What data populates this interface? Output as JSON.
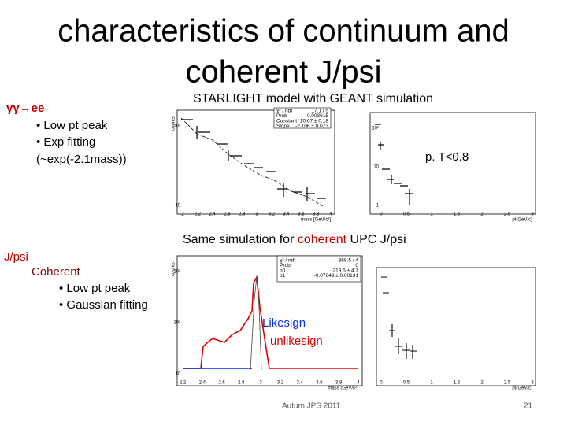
{
  "title_lines": [
    "characteristics of continuum and",
    "coherent J/psi"
  ],
  "top": {
    "heading": "γγ→ee",
    "bullets": [
      "• Low pt peak",
      "• Exp fitting",
      "(~exp(-2.1mass))"
    ],
    "caption": "STARLIGHT model with GEANT simulation",
    "pt_cut": "p. T<0.8",
    "mass_plot": {
      "y_label": "counts",
      "x_label": "mass [GeV/c²]",
      "x_ticks": [
        "2",
        "2.2",
        "2.4",
        "2.6",
        "2.8",
        "3",
        "3.2",
        "3.4",
        "3.6",
        "3.8",
        "4"
      ],
      "y_ticks": [
        "10²",
        "10"
      ],
      "stats": [
        [
          "χ² / ndf",
          "17.1 / 5"
        ],
        [
          "Prob",
          "0.003615"
        ],
        [
          "Constant",
          "10.67 ± 0.18"
        ],
        [
          "Slope",
          "-2.106 ± 0.073"
        ]
      ]
    },
    "pt_plot": {
      "x_label": "pt(GeV/c)",
      "x_ticks": [
        "0",
        "0.5",
        "1",
        "1.5",
        "2",
        "2.5",
        "3"
      ],
      "y_ticks": [
        "10²",
        "10",
        "1"
      ]
    }
  },
  "bottom": {
    "heading": "J/psi",
    "subheading": "Coherent",
    "bullets": [
      "• Low pt peak",
      "• Gaussian fitting"
    ],
    "caption_parts": [
      "Same simulation for ",
      "coherent",
      " UPC J/psi"
    ],
    "mass_plot": {
      "y_label": "counts",
      "x_label": "mass (GeV/c²)",
      "x_ticks": [
        "2.2",
        "2.4",
        "2.6",
        "2.8",
        "3",
        "3.2",
        "3.4",
        "3.6",
        "3.8",
        "4"
      ],
      "y_ticks": [
        "10³",
        "10²",
        "10"
      ],
      "stats": [
        [
          "χ² / ndf",
          "368.5 / 4"
        ],
        [
          "Prob",
          "0"
        ],
        [
          "p0",
          "-219.5 ± 4.7"
        ],
        [
          "p1",
          "-0.07649 ± 0.00131"
        ]
      ],
      "legend": [
        "Likesign",
        "unlikesign"
      ]
    },
    "pt_plot": {
      "x_label": "pt(GeV/c)",
      "x_ticks": [
        "0",
        "0.5",
        "1",
        "1.5",
        "2",
        "2.5",
        "3"
      ]
    }
  },
  "footer": {
    "event": "Autum JPS 2011",
    "page": "21"
  }
}
